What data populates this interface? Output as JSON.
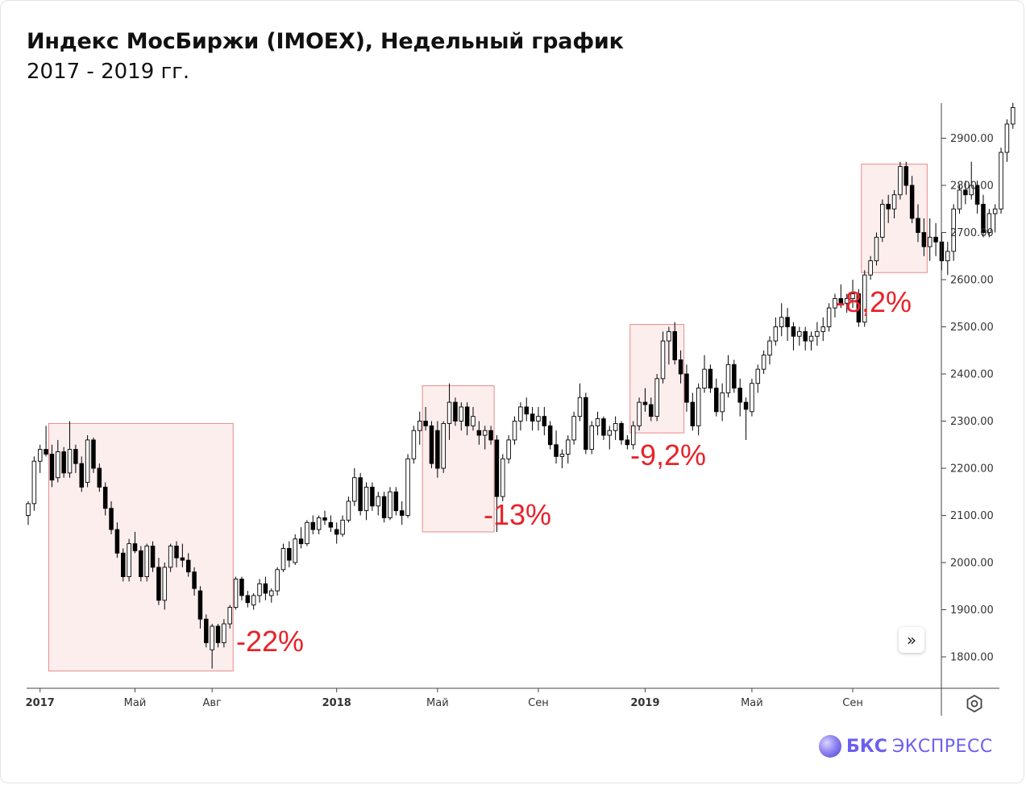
{
  "header": {
    "title": "Индекс МосБиржи (IMOEX), Недельный график",
    "subtitle": "2017 - 2019 гг."
  },
  "brand": {
    "bold": "БКС",
    "light": "ЭКСПРЕСС"
  },
  "controls": {
    "scroll_icon": "double-chevron-right-icon",
    "settings_icon": "gear-icon"
  },
  "colors": {
    "up": "#ffffff",
    "down": "#000000",
    "wick": "#000000",
    "box_fill": "#fdeeee",
    "box_stroke": "#e88a8a",
    "annotation": "#e8222a"
  },
  "chart_data": {
    "type": "candlestick",
    "ylim": [
      1770,
      2975
    ],
    "y_ticks": [
      "2900.00",
      "2800.00",
      "2700.00",
      "2600.00",
      "2500.00",
      "2400.00",
      "2300.00",
      "2200.00",
      "2100.00",
      "2000.00",
      "1900.00",
      "1800.00"
    ],
    "y_tick_values": [
      2900,
      2800,
      2700,
      2600,
      2500,
      2400,
      2300,
      2200,
      2100,
      2000,
      1900,
      1800
    ],
    "x_ticks": [
      {
        "label": "2017",
        "week": 2,
        "year": true
      },
      {
        "label": "Май",
        "week": 18,
        "year": false
      },
      {
        "label": "Авг",
        "week": 31,
        "year": false
      },
      {
        "label": "2018",
        "week": 52,
        "year": true
      },
      {
        "label": "Май",
        "week": 69,
        "year": false
      },
      {
        "label": "Сен",
        "week": 86,
        "year": false
      },
      {
        "label": "2019",
        "week": 104,
        "year": true
      },
      {
        "label": "Май",
        "week": 122,
        "year": false
      },
      {
        "label": "Сен",
        "week": 139,
        "year": false
      }
    ],
    "candles": [
      [
        2100,
        2130,
        2080,
        2125
      ],
      [
        2125,
        2225,
        2110,
        2215
      ],
      [
        2215,
        2250,
        2190,
        2240
      ],
      [
        2240,
        2290,
        2225,
        2230
      ],
      [
        2230,
        2250,
        2160,
        2175
      ],
      [
        2180,
        2260,
        2170,
        2235
      ],
      [
        2235,
        2245,
        2180,
        2190
      ],
      [
        2190,
        2300,
        2180,
        2240
      ],
      [
        2240,
        2250,
        2190,
        2210
      ],
      [
        2210,
        2225,
        2150,
        2160
      ],
      [
        2170,
        2270,
        2160,
        2260
      ],
      [
        2260,
        2265,
        2190,
        2200
      ],
      [
        2200,
        2210,
        2150,
        2160
      ],
      [
        2160,
        2170,
        2100,
        2115
      ],
      [
        2115,
        2130,
        2060,
        2070
      ],
      [
        2070,
        2085,
        2010,
        2020
      ],
      [
        2020,
        2030,
        1960,
        1970
      ],
      [
        1970,
        2050,
        1960,
        2040
      ],
      [
        2040,
        2065,
        2020,
        2025
      ],
      [
        2025,
        2035,
        1960,
        1970
      ],
      [
        1970,
        2040,
        1960,
        2035
      ],
      [
        2035,
        2045,
        1980,
        1990
      ],
      [
        1990,
        2010,
        1910,
        1920
      ],
      [
        1920,
        2000,
        1900,
        1990
      ],
      [
        1990,
        2040,
        1980,
        2035
      ],
      [
        2035,
        2045,
        1990,
        2010
      ],
      [
        2010,
        2040,
        1990,
        2005
      ],
      [
        2005,
        2020,
        1970,
        1980
      ],
      [
        1980,
        1990,
        1930,
        1945
      ],
      [
        1940,
        1950,
        1860,
        1880
      ],
      [
        1880,
        1890,
        1820,
        1830
      ],
      [
        1815,
        1870,
        1775,
        1865
      ],
      [
        1865,
        1870,
        1820,
        1830
      ],
      [
        1830,
        1880,
        1820,
        1870
      ],
      [
        1870,
        1910,
        1860,
        1905
      ],
      [
        1905,
        1970,
        1900,
        1965
      ],
      [
        1965,
        1970,
        1920,
        1930
      ],
      [
        1930,
        1940,
        1905,
        1915
      ],
      [
        1910,
        1935,
        1900,
        1930
      ],
      [
        1930,
        1965,
        1915,
        1955
      ],
      [
        1955,
        1970,
        1920,
        1935
      ],
      [
        1930,
        1945,
        1915,
        1940
      ],
      [
        1940,
        1990,
        1930,
        1985
      ],
      [
        1985,
        2040,
        1980,
        2030
      ],
      [
        2030,
        2045,
        1990,
        2005
      ],
      [
        2000,
        2060,
        1995,
        2050
      ],
      [
        2050,
        2075,
        2030,
        2040
      ],
      [
        2040,
        2090,
        2035,
        2085
      ],
      [
        2085,
        2100,
        2060,
        2070
      ],
      [
        2070,
        2100,
        2060,
        2095
      ],
      [
        2095,
        2110,
        2080,
        2090
      ],
      [
        2085,
        2100,
        2065,
        2075
      ],
      [
        2070,
        2085,
        2040,
        2060
      ],
      [
        2060,
        2100,
        2055,
        2090
      ],
      [
        2090,
        2140,
        2085,
        2130
      ],
      [
        2130,
        2200,
        2120,
        2180
      ],
      [
        2180,
        2190,
        2100,
        2110
      ],
      [
        2110,
        2170,
        2090,
        2160
      ],
      [
        2160,
        2170,
        2110,
        2120
      ],
      [
        2120,
        2150,
        2100,
        2140
      ],
      [
        2140,
        2150,
        2085,
        2095
      ],
      [
        2095,
        2160,
        2090,
        2150
      ],
      [
        2150,
        2160,
        2100,
        2110
      ],
      [
        2110,
        2130,
        2080,
        2100
      ],
      [
        2100,
        2230,
        2095,
        2220
      ],
      [
        2220,
        2290,
        2210,
        2280
      ],
      [
        2280,
        2320,
        2250,
        2300
      ],
      [
        2300,
        2330,
        2280,
        2290
      ],
      [
        2290,
        2300,
        2200,
        2210
      ],
      [
        2280,
        2300,
        2180,
        2200
      ],
      [
        2200,
        2300,
        2190,
        2295
      ],
      [
        2295,
        2380,
        2260,
        2340
      ],
      [
        2340,
        2350,
        2290,
        2300
      ],
      [
        2300,
        2340,
        2280,
        2330
      ],
      [
        2330,
        2340,
        2270,
        2290
      ],
      [
        2290,
        2330,
        2280,
        2310
      ],
      [
        2280,
        2300,
        2250,
        2270
      ],
      [
        2270,
        2290,
        2240,
        2280
      ],
      [
        2280,
        2290,
        2250,
        2260
      ],
      [
        2260,
        2270,
        2065,
        2140
      ],
      [
        2140,
        2230,
        2130,
        2220
      ],
      [
        2220,
        2270,
        2210,
        2260
      ],
      [
        2260,
        2310,
        2250,
        2300
      ],
      [
        2300,
        2340,
        2280,
        2330
      ],
      [
        2330,
        2350,
        2300,
        2315
      ],
      [
        2315,
        2330,
        2280,
        2300
      ],
      [
        2300,
        2330,
        2280,
        2310
      ],
      [
        2310,
        2330,
        2270,
        2290
      ],
      [
        2290,
        2300,
        2240,
        2250
      ],
      [
        2250,
        2280,
        2210,
        2225
      ],
      [
        2225,
        2240,
        2200,
        2230
      ],
      [
        2230,
        2270,
        2210,
        2260
      ],
      [
        2260,
        2320,
        2250,
        2310
      ],
      [
        2310,
        2380,
        2300,
        2350
      ],
      [
        2350,
        2360,
        2230,
        2240
      ],
      [
        2240,
        2300,
        2230,
        2290
      ],
      [
        2290,
        2320,
        2270,
        2305
      ],
      [
        2305,
        2310,
        2260,
        2270
      ],
      [
        2270,
        2290,
        2240,
        2280
      ],
      [
        2280,
        2310,
        2260,
        2295
      ],
      [
        2295,
        2300,
        2250,
        2260
      ],
      [
        2260,
        2270,
        2240,
        2250
      ],
      [
        2250,
        2300,
        2240,
        2290
      ],
      [
        2290,
        2350,
        2280,
        2340
      ],
      [
        2340,
        2370,
        2320,
        2335
      ],
      [
        2335,
        2350,
        2300,
        2310
      ],
      [
        2310,
        2400,
        2300,
        2390
      ],
      [
        2390,
        2490,
        2380,
        2470
      ],
      [
        2470,
        2500,
        2420,
        2490
      ],
      [
        2490,
        2510,
        2420,
        2430
      ],
      [
        2430,
        2450,
        2380,
        2400
      ],
      [
        2400,
        2420,
        2320,
        2340
      ],
      [
        2340,
        2360,
        2280,
        2290
      ],
      [
        2290,
        2380,
        2270,
        2370
      ],
      [
        2370,
        2440,
        2360,
        2410
      ],
      [
        2410,
        2420,
        2360,
        2370
      ],
      [
        2370,
        2390,
        2310,
        2320
      ],
      [
        2320,
        2380,
        2300,
        2360
      ],
      [
        2360,
        2440,
        2350,
        2420
      ],
      [
        2420,
        2430,
        2360,
        2370
      ],
      [
        2370,
        2390,
        2310,
        2340
      ],
      [
        2340,
        2350,
        2260,
        2325
      ],
      [
        2320,
        2390,
        2310,
        2380
      ],
      [
        2380,
        2420,
        2360,
        2410
      ],
      [
        2410,
        2450,
        2400,
        2440
      ],
      [
        2440,
        2480,
        2420,
        2470
      ],
      [
        2470,
        2520,
        2460,
        2500
      ],
      [
        2500,
        2550,
        2480,
        2520
      ],
      [
        2520,
        2540,
        2470,
        2500
      ],
      [
        2500,
        2510,
        2450,
        2480
      ],
      [
        2480,
        2500,
        2460,
        2490
      ],
      [
        2490,
        2500,
        2450,
        2470
      ],
      [
        2470,
        2490,
        2450,
        2480
      ],
      [
        2480,
        2510,
        2460,
        2490
      ],
      [
        2490,
        2520,
        2470,
        2500
      ],
      [
        2500,
        2550,
        2490,
        2540
      ],
      [
        2540,
        2570,
        2520,
        2560
      ],
      [
        2560,
        2590,
        2540,
        2550
      ],
      [
        2550,
        2570,
        2530,
        2560
      ],
      [
        2560,
        2600,
        2540,
        2570
      ],
      [
        2570,
        2580,
        2500,
        2510
      ],
      [
        2510,
        2620,
        2500,
        2610
      ],
      [
        2610,
        2650,
        2600,
        2640
      ],
      [
        2640,
        2700,
        2630,
        2690
      ],
      [
        2690,
        2770,
        2680,
        2760
      ],
      [
        2760,
        2780,
        2720,
        2750
      ],
      [
        2750,
        2790,
        2730,
        2780
      ],
      [
        2780,
        2850,
        2770,
        2840
      ],
      [
        2840,
        2850,
        2780,
        2800
      ],
      [
        2800,
        2820,
        2720,
        2730
      ],
      [
        2730,
        2760,
        2680,
        2700
      ],
      [
        2700,
        2730,
        2650,
        2670
      ],
      [
        2670,
        2730,
        2640,
        2690
      ],
      [
        2690,
        2720,
        2650,
        2680
      ],
      [
        2680,
        2700,
        2620,
        2640
      ],
      [
        2640,
        2680,
        2610,
        2660
      ],
      [
        2660,
        2760,
        2640,
        2750
      ],
      [
        2750,
        2800,
        2740,
        2790
      ],
      [
        2790,
        2810,
        2760,
        2780
      ],
      [
        2780,
        2850,
        2770,
        2800
      ],
      [
        2800,
        2810,
        2740,
        2760
      ],
      [
        2760,
        2780,
        2690,
        2700
      ],
      [
        2700,
        2750,
        2690,
        2740
      ],
      [
        2740,
        2760,
        2700,
        2750
      ],
      [
        2750,
        2880,
        2740,
        2870
      ],
      [
        2870,
        2940,
        2850,
        2930
      ],
      [
        2930,
        2975,
        2920,
        2965
      ]
    ],
    "highlight_boxes": [
      {
        "from_week": 4,
        "to_week": 34,
        "top": 2295,
        "bottom": 1770,
        "label": "-22%"
      },
      {
        "from_week": 67,
        "to_week": 78,
        "top": 2375,
        "bottom": 2065,
        "label": "-13%"
      },
      {
        "from_week": 102,
        "to_week": 110,
        "top": 2505,
        "bottom": 2275,
        "label": "-9,2%"
      },
      {
        "from_week": 141,
        "to_week": 151,
        "top": 2845,
        "bottom": 2615,
        "label": "-8,2%"
      }
    ]
  }
}
